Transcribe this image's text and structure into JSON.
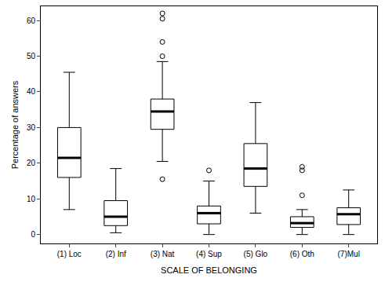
{
  "chart_data": {
    "type": "box",
    "x_label": "SCALE OF BELONGING",
    "y_label": "Percentage of answers",
    "categories": [
      "(1) Loc",
      "(2) Inf",
      "(3) Nat",
      "(4) Sup",
      "(5) Glo",
      "(6) Oth",
      "(7)Mul"
    ],
    "whisker_low": [
      7,
      0.5,
      20.5,
      0,
      6,
      0,
      0
    ],
    "q1": [
      16,
      2.5,
      29.5,
      3,
      13.5,
      2,
      2.8
    ],
    "median": [
      21.5,
      5,
      34.5,
      6,
      18.5,
      3.2,
      5.7
    ],
    "q3": [
      30,
      9.5,
      38,
      8,
      25.5,
      5,
      7.5
    ],
    "whisker_high": [
      45.5,
      18.5,
      48.5,
      15,
      37,
      7,
      12.5
    ],
    "outliers": [
      [],
      [],
      [
        15.5,
        50,
        54,
        60.5,
        62
      ],
      [
        18
      ],
      [],
      [
        11,
        18,
        19
      ],
      []
    ],
    "color": "#000000",
    "ylim": [
      -2.5,
      64
    ],
    "yticks": [
      0,
      10,
      20,
      30,
      40,
      50,
      60
    ],
    "grid": false
  }
}
